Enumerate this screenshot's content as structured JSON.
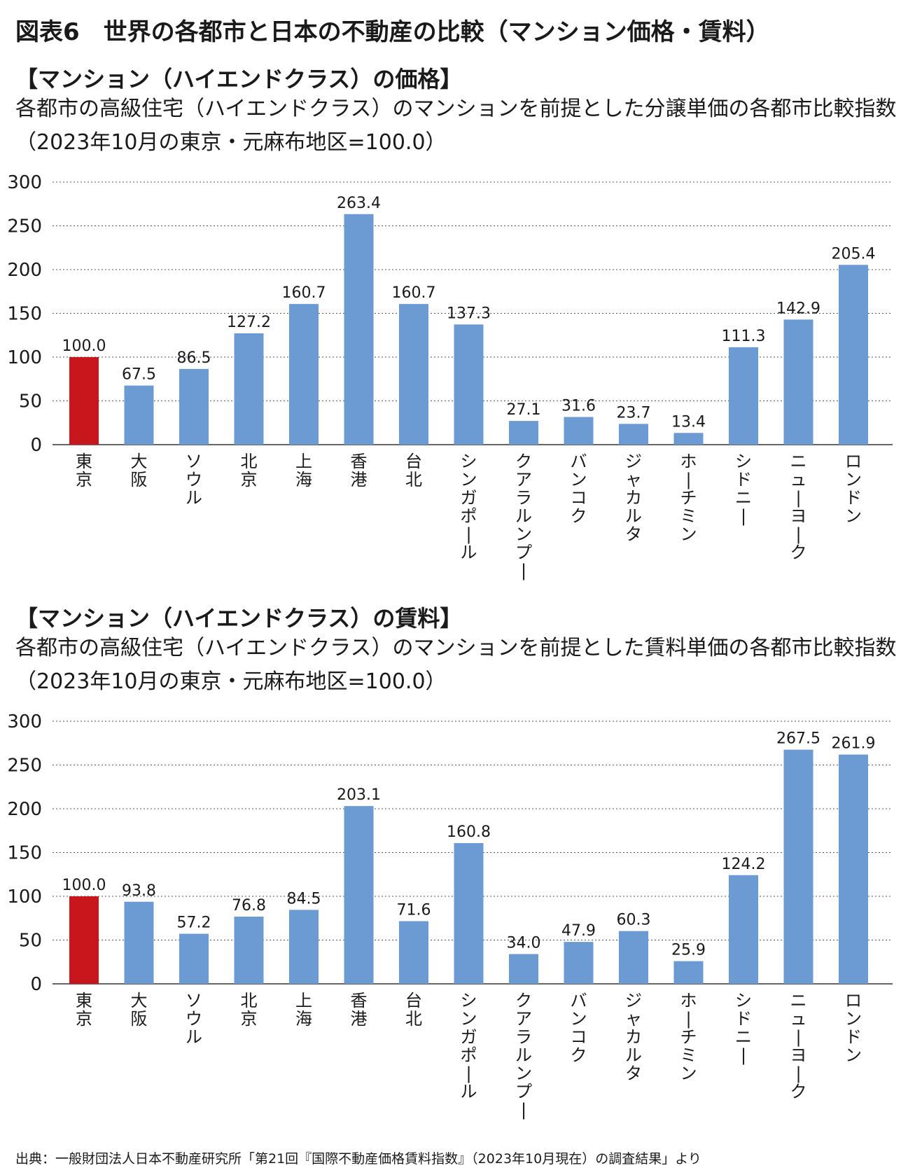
{
  "figure_title": "図表6　世界の各都市と日本の不動産の比較（マンション価格・賃料）",
  "colors": {
    "highlight": "#c8161d",
    "bar": "#6b9bd2"
  },
  "source_note": "出典：一般財団法人日本不動産研究所「第21回『国際不動産価格賃料指数』（2023年10月現在）の調査結果」より",
  "chart_data": [
    {
      "type": "bar",
      "title": "【マンション（ハイエンドクラス）の価格】",
      "description": "各都市の高級住宅（ハイエンドクラス）のマンションを前提とした分譲単価の各都市比較指数（2023年10月の東京・元麻布地区=100.0）",
      "categories": [
        "東京",
        "大阪",
        "ソウル",
        "北京",
        "上海",
        "香港",
        "台北",
        "シンガポール",
        "クアラルンプール",
        "バンコク",
        "ジャカルタ",
        "ホーチミン",
        "シドニー",
        "ニューヨーク",
        "ロンドン"
      ],
      "values": [
        100.0,
        67.5,
        86.5,
        127.2,
        160.7,
        263.4,
        160.7,
        137.3,
        27.1,
        31.6,
        23.7,
        13.4,
        111.3,
        142.9,
        205.4
      ],
      "value_labels": [
        "100.0",
        "67.5",
        "86.5",
        "127.2",
        "160.7",
        "263.4",
        "160.7",
        "137.3",
        "27.1",
        "31.6",
        "23.7",
        "13.4",
        "111.3",
        "142.9",
        "205.4"
      ],
      "highlight_category": "東京",
      "ylim": [
        0,
        300
      ],
      "yticks": [
        "0",
        "50",
        "100",
        "150",
        "200",
        "250",
        "300"
      ],
      "grid": "dotted horizontal"
    },
    {
      "type": "bar",
      "title": "【マンション（ハイエンドクラス）の賃料】",
      "description": "各都市の高級住宅（ハイエンドクラス）のマンションを前提とした賃料単価の各都市比較指数（2023年10月の東京・元麻布地区=100.0）",
      "categories": [
        "東京",
        "大阪",
        "ソウル",
        "北京",
        "上海",
        "香港",
        "台北",
        "シンガポール",
        "クアラルンプール",
        "バンコク",
        "ジャカルタ",
        "ホーチミン",
        "シドニー",
        "ニューヨーク",
        "ロンドン"
      ],
      "values": [
        100.0,
        93.8,
        57.2,
        76.8,
        84.5,
        203.1,
        71.6,
        160.8,
        34.0,
        47.9,
        60.3,
        25.9,
        124.2,
        267.5,
        261.9
      ],
      "value_labels": [
        "100.0",
        "93.8",
        "57.2",
        "76.8",
        "84.5",
        "203.1",
        "71.6",
        "160.8",
        "34.0",
        "47.9",
        "60.3",
        "25.9",
        "124.2",
        "267.5",
        "261.9"
      ],
      "highlight_category": "東京",
      "ylim": [
        0,
        300
      ],
      "yticks": [
        "0",
        "50",
        "100",
        "150",
        "200",
        "250",
        "300"
      ],
      "grid": "dotted horizontal"
    }
  ]
}
